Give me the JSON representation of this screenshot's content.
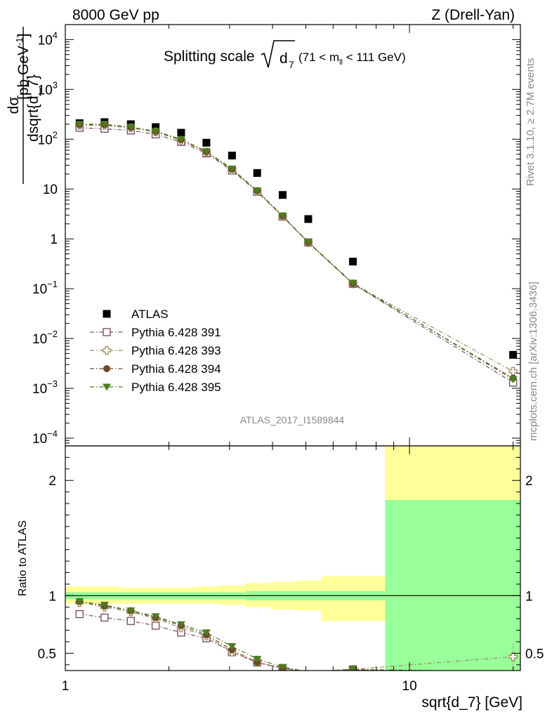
{
  "header": {
    "left": "8000 GeV pp",
    "right": "Z (Drell-Yan)"
  },
  "side_labels": {
    "rivet": "Rivet 3.1.10, ≥ 2.7M events",
    "mcplots": "mcplots.cern.ch [arXiv:1306.3436]"
  },
  "watermark": "ATLAS_2017_I1589844",
  "colors": {
    "ATLAS": "#000000",
    "p391": "#7b4f63",
    "p393": "#9a8a58",
    "p394": "#6b4a2c",
    "p395": "#4c7d1e",
    "band_inner": "#99ff99",
    "band_outer": "#ffff99"
  },
  "chart_data": [
    {
      "type": "scatter",
      "panel": "main",
      "title_prefix": "Splitting scale",
      "title_symbol": "d",
      "title_subscript": "7",
      "title_range": "(71 < m",
      "title_range_sub": "ll",
      "title_range_end": " < 111 GeV)",
      "xlabel": "sqrt{d_7} [GeV]",
      "ylabel_num": "dσ",
      "ylabel_den": "dsqrt{d_7}",
      "ylabel_unit_pre": "[pb,GeV",
      "ylabel_unit_exp": "-1",
      "ylabel_unit_post": "]",
      "xscale": "log",
      "yscale": "log",
      "xlim": [
        1,
        21
      ],
      "ylim": [
        7e-05,
        20000
      ],
      "xticks": [
        {
          "value": 1,
          "label": "1"
        },
        {
          "value": 10,
          "label": "10"
        }
      ],
      "yticks": [
        {
          "value": 0.0001,
          "base": "10",
          "exp": "−4"
        },
        {
          "value": 0.001,
          "base": "10",
          "exp": "−3"
        },
        {
          "value": 0.01,
          "base": "10",
          "exp": "−2"
        },
        {
          "value": 0.1,
          "base": "10",
          "exp": "−1"
        },
        {
          "value": 1,
          "base": "1",
          "exp": ""
        },
        {
          "value": 10,
          "base": "10",
          "exp": ""
        },
        {
          "value": 100,
          "base": "10",
          "exp": "2"
        },
        {
          "value": 1000,
          "base": "10",
          "exp": "3"
        },
        {
          "value": 10000,
          "base": "10",
          "exp": "4"
        }
      ],
      "x": [
        1.1,
        1.3,
        1.55,
        1.83,
        2.17,
        2.57,
        3.05,
        3.61,
        4.28,
        5.08,
        6.85,
        20.0
      ],
      "series": [
        {
          "name": "ATLAS",
          "marker": "square-filled",
          "line": "none",
          "values": [
            210,
            220,
            200,
            175,
            135,
            85,
            47,
            21,
            7.6,
            2.5,
            0.35,
            0.0047
          ]
        },
        {
          "name": "Pythia 6.428 391",
          "marker": "square-open",
          "line": "dash-dot",
          "values": [
            170,
            162,
            150,
            125,
            88,
            52,
            23.5,
            8.8,
            2.8,
            0.85,
            0.125,
            0.0013
          ]
        },
        {
          "name": "Pythia 6.428 393",
          "marker": "cross-open",
          "line": "dash-dot",
          "values": [
            190,
            190,
            170,
            140,
            95,
            55,
            24,
            9.0,
            2.8,
            0.84,
            0.125,
            0.0022
          ]
        },
        {
          "name": "Pythia 6.428 394",
          "marker": "circle-filled",
          "line": "dash-dot",
          "values": [
            195,
            195,
            172,
            142,
            98,
            56,
            25,
            9.2,
            2.85,
            0.85,
            0.125,
            0.0016
          ]
        },
        {
          "name": "Pythia 6.428 395",
          "marker": "triangle-down-filled",
          "line": "dash-dot",
          "values": [
            200,
            200,
            175,
            145,
            100,
            57,
            25.5,
            9.3,
            2.9,
            0.86,
            0.13,
            0.0015
          ]
        }
      ],
      "legend_position": "lower-left"
    },
    {
      "type": "line",
      "panel": "ratio",
      "ylabel": "Ratio to ATLAS",
      "xscale": "log",
      "ylim": [
        0.35,
        2.3
      ],
      "yticks": [
        {
          "value": 0.5,
          "label": "0.5"
        },
        {
          "value": 1,
          "label": "1"
        },
        {
          "value": 2,
          "label": "2"
        }
      ],
      "x": [
        1.1,
        1.3,
        1.55,
        1.83,
        2.17,
        2.57,
        3.05,
        3.61,
        4.28,
        5.08,
        6.85,
        20.0
      ],
      "bin_edges": [
        1.0,
        1.2,
        1.42,
        1.68,
        2.0,
        2.37,
        2.81,
        3.33,
        3.95,
        4.68,
        5.56,
        8.5,
        21.0
      ],
      "band_inner": [
        [
          0.97,
          1.03
        ],
        [
          0.97,
          1.03
        ],
        [
          0.97,
          1.03
        ],
        [
          0.97,
          1.03
        ],
        [
          0.97,
          1.03
        ],
        [
          0.97,
          1.03
        ],
        [
          0.97,
          1.03
        ],
        [
          0.96,
          1.04
        ],
        [
          0.96,
          1.04
        ],
        [
          0.96,
          1.04
        ],
        [
          0.96,
          1.04
        ],
        [
          0.35,
          1.83
        ]
      ],
      "band_outer": [
        [
          0.93,
          1.08
        ],
        [
          0.93,
          1.08
        ],
        [
          0.93,
          1.07
        ],
        [
          0.93,
          1.07
        ],
        [
          0.93,
          1.07
        ],
        [
          0.93,
          1.08
        ],
        [
          0.92,
          1.09
        ],
        [
          0.9,
          1.11
        ],
        [
          0.88,
          1.12
        ],
        [
          0.87,
          1.13
        ],
        [
          0.78,
          1.17
        ],
        [
          0.35,
          2.3
        ]
      ],
      "series": [
        {
          "name": "Pythia 6.428 391",
          "values": [
            0.84,
            0.81,
            0.78,
            0.74,
            0.68,
            0.63,
            0.51,
            0.42,
            0.37,
            0.34,
            0.36,
            0.28
          ]
        },
        {
          "name": "Pythia 6.428 393",
          "values": [
            0.94,
            0.9,
            0.86,
            0.8,
            0.72,
            0.65,
            0.51,
            0.42,
            0.37,
            0.34,
            0.36,
            0.47
          ]
        },
        {
          "name": "Pythia 6.428 394",
          "values": [
            0.95,
            0.91,
            0.87,
            0.81,
            0.74,
            0.66,
            0.53,
            0.42,
            0.37,
            0.34,
            0.36,
            0.34
          ]
        },
        {
          "name": "Pythia 6.428 395",
          "values": [
            0.95,
            0.92,
            0.87,
            0.82,
            0.75,
            0.68,
            0.56,
            0.45,
            0.38,
            0.34,
            0.36,
            0.32
          ]
        }
      ]
    }
  ]
}
